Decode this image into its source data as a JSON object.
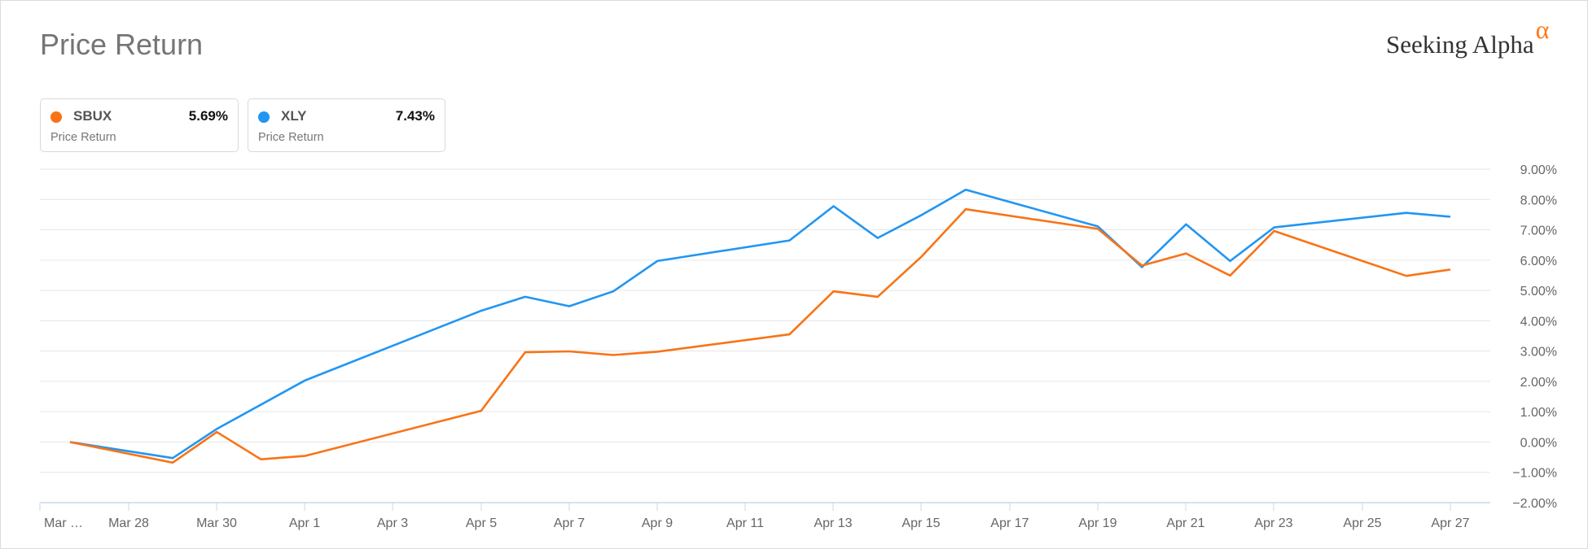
{
  "header": {
    "title": "Price Return",
    "logo_text": "Seeking Alpha",
    "logo_symbol": "α"
  },
  "legend": [
    {
      "ticker": "SBUX",
      "value": "5.69%",
      "label": "Price Return",
      "color": "#f97316"
    },
    {
      "ticker": "XLY",
      "value": "7.43%",
      "label": "Price Return",
      "color": "#2196f3"
    }
  ],
  "chart_data": {
    "type": "line",
    "ylim": [
      -2,
      9
    ],
    "grid": true,
    "y_ticks": [
      9,
      8,
      7,
      6,
      5,
      4,
      3,
      2,
      1,
      0,
      -1,
      -2
    ],
    "y_tick_labels": [
      "9.00%",
      "8.00%",
      "7.00%",
      "6.00%",
      "5.00%",
      "4.00%",
      "3.00%",
      "2.00%",
      "1.00%",
      "0.00%",
      "−1.00%",
      "−2.00%"
    ],
    "x_tick_labels": [
      "Mar …",
      "Mar 28",
      "Mar 30",
      "Apr 1",
      "Apr 3",
      "Apr 5",
      "Apr 7",
      "Apr 9",
      "Apr 11",
      "Apr 13",
      "Apr 15",
      "Apr 17",
      "Apr 19",
      "Apr 21",
      "Apr 23",
      "Apr 25",
      "Apr 27"
    ],
    "x_tick_days": [
      0,
      1,
      2,
      3,
      4,
      5,
      6,
      7,
      8,
      9,
      10,
      11,
      12,
      13,
      14,
      15,
      16
    ],
    "series": [
      {
        "name": "SBUX",
        "color": "#f97316",
        "points": [
          [
            "Mar 26",
            0.0
          ],
          [
            "Mar 29",
            -0.68
          ],
          [
            "Mar 30",
            0.33
          ],
          [
            "Mar 31",
            -0.57
          ],
          [
            "Apr 1",
            -0.46
          ],
          [
            "Apr 5",
            1.03
          ],
          [
            "Apr 6",
            2.96
          ],
          [
            "Apr 7",
            2.99
          ],
          [
            "Apr 8",
            2.87
          ],
          [
            "Apr 9",
            2.98
          ],
          [
            "Apr 12",
            3.55
          ],
          [
            "Apr 13",
            4.97
          ],
          [
            "Apr 14",
            4.79
          ],
          [
            "Apr 15",
            6.12
          ],
          [
            "Apr 16",
            7.68
          ],
          [
            "Apr 19",
            7.03
          ],
          [
            "Apr 20",
            5.82
          ],
          [
            "Apr 21",
            6.22
          ],
          [
            "Apr 22",
            5.49
          ],
          [
            "Apr 23",
            6.96
          ],
          [
            "Apr 26",
            5.48
          ],
          [
            "Apr 27",
            5.69
          ]
        ]
      },
      {
        "name": "XLY",
        "color": "#2196f3",
        "points": [
          [
            "Mar 26",
            0.0
          ],
          [
            "Mar 29",
            -0.53
          ],
          [
            "Mar 30",
            0.43
          ],
          [
            "Apr 1",
            2.03
          ],
          [
            "Apr 5",
            4.33
          ],
          [
            "Apr 6",
            4.79
          ],
          [
            "Apr 7",
            4.48
          ],
          [
            "Apr 8",
            4.97
          ],
          [
            "Apr 9",
            5.97
          ],
          [
            "Apr 12",
            6.65
          ],
          [
            "Apr 13",
            7.78
          ],
          [
            "Apr 14",
            6.73
          ],
          [
            "Apr 15",
            7.49
          ],
          [
            "Apr 16",
            8.32
          ],
          [
            "Apr 19",
            7.11
          ],
          [
            "Apr 20",
            5.77
          ],
          [
            "Apr 21",
            7.18
          ],
          [
            "Apr 22",
            5.97
          ],
          [
            "Apr 23",
            7.08
          ],
          [
            "Apr 26",
            7.56
          ],
          [
            "Apr 27",
            7.43
          ]
        ]
      }
    ]
  }
}
